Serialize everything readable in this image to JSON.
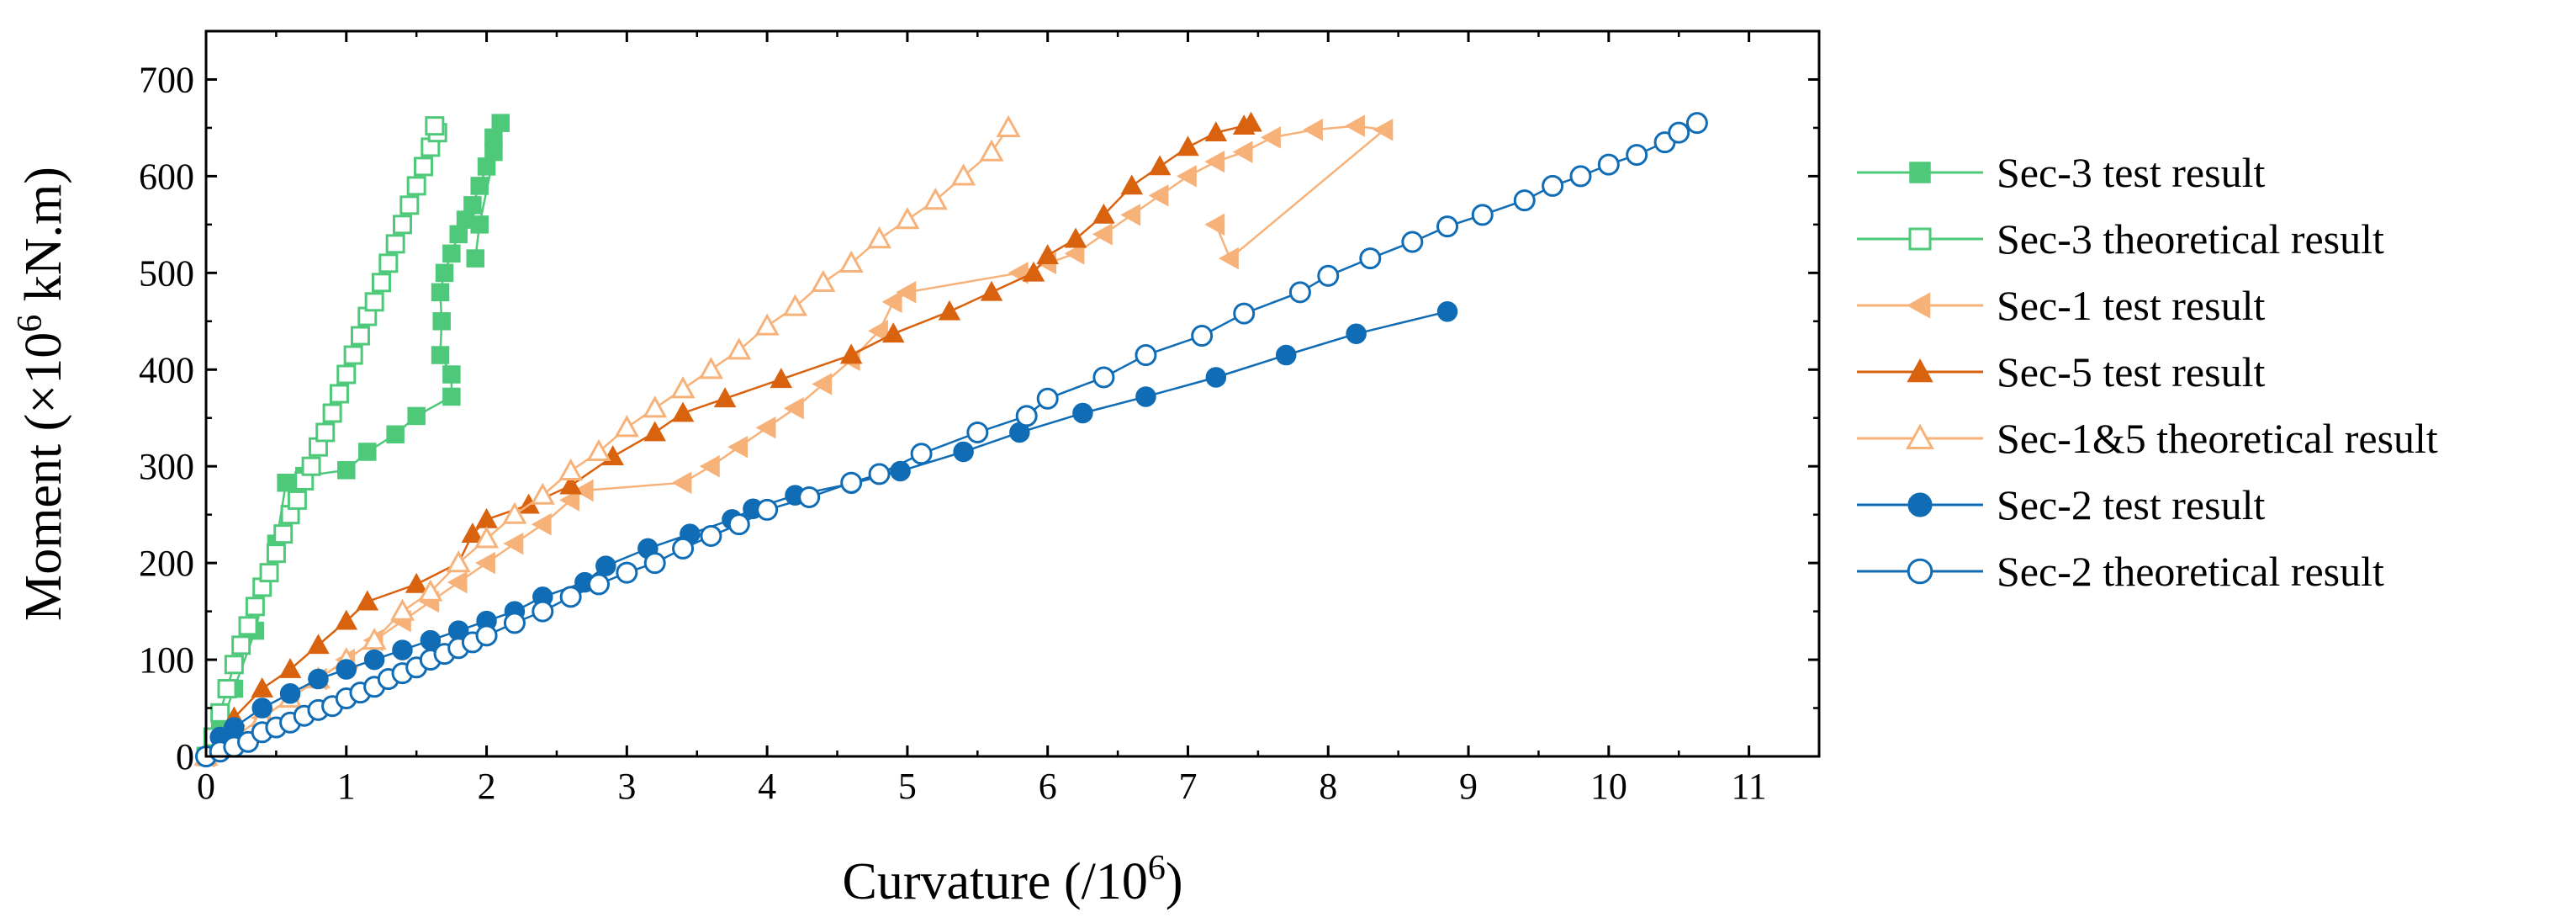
{
  "chart_data": {
    "type": "line",
    "title": "",
    "xlabel_main": "Curvature (/10",
    "xlabel_sup": "6",
    "xlabel_end": ")",
    "ylabel_main": "Moment (×10",
    "ylabel_sup": "6",
    "ylabel_end": " kN.m)",
    "xlim": [
      0,
      11.5
    ],
    "ylim": [
      0,
      750
    ],
    "xticks": [
      0,
      1,
      2,
      3,
      4,
      5,
      6,
      7,
      8,
      9,
      10,
      11
    ],
    "yticks": [
      0,
      100,
      200,
      300,
      400,
      500,
      600,
      700
    ],
    "grid": false,
    "legend_position": "right",
    "series": [
      {
        "name": "Sec-3 test result",
        "color": "#4ec97a",
        "marker": "square",
        "filled": true,
        "points": [
          [
            0,
            0
          ],
          [
            0.1,
            30
          ],
          [
            0.2,
            70
          ],
          [
            0.35,
            130
          ],
          [
            0.5,
            220
          ],
          [
            0.57,
            283
          ],
          [
            0.7,
            290
          ],
          [
            1.0,
            296
          ],
          [
            1.15,
            315
          ],
          [
            1.35,
            333
          ],
          [
            1.5,
            352
          ],
          [
            1.75,
            372
          ],
          [
            1.75,
            395
          ],
          [
            1.67,
            415
          ],
          [
            1.68,
            450
          ],
          [
            1.67,
            480
          ],
          [
            1.7,
            500
          ],
          [
            1.75,
            520
          ],
          [
            1.8,
            540
          ],
          [
            1.85,
            555
          ],
          [
            1.9,
            570
          ],
          [
            1.95,
            590
          ],
          [
            2.0,
            610
          ],
          [
            2.05,
            625
          ],
          [
            2.05,
            640
          ],
          [
            2.1,
            655
          ],
          [
            1.95,
            550
          ],
          [
            1.92,
            515
          ]
        ]
      },
      {
        "name": "Sec-3 theoretical result",
        "color": "#4ec97a",
        "marker": "square",
        "filled": false,
        "points": [
          [
            0,
            0
          ],
          [
            0.05,
            20
          ],
          [
            0.1,
            45
          ],
          [
            0.15,
            70
          ],
          [
            0.2,
            95
          ],
          [
            0.25,
            115
          ],
          [
            0.3,
            135
          ],
          [
            0.35,
            155
          ],
          [
            0.4,
            175
          ],
          [
            0.45,
            190
          ],
          [
            0.5,
            210
          ],
          [
            0.55,
            230
          ],
          [
            0.6,
            250
          ],
          [
            0.65,
            265
          ],
          [
            0.7,
            285
          ],
          [
            0.75,
            300
          ],
          [
            0.8,
            320
          ],
          [
            0.85,
            335
          ],
          [
            0.9,
            355
          ],
          [
            0.95,
            375
          ],
          [
            1.0,
            395
          ],
          [
            1.05,
            415
          ],
          [
            1.1,
            435
          ],
          [
            1.15,
            455
          ],
          [
            1.2,
            470
          ],
          [
            1.25,
            490
          ],
          [
            1.3,
            510
          ],
          [
            1.35,
            530
          ],
          [
            1.4,
            550
          ],
          [
            1.45,
            570
          ],
          [
            1.5,
            590
          ],
          [
            1.55,
            610
          ],
          [
            1.6,
            630
          ],
          [
            1.65,
            645
          ],
          [
            1.63,
            652
          ]
        ]
      },
      {
        "name": "Sec-1 test result",
        "color": "#f7b27a",
        "marker": "triangle-left",
        "filled": true,
        "points": [
          [
            0,
            0
          ],
          [
            0.2,
            20
          ],
          [
            0.4,
            40
          ],
          [
            0.6,
            60
          ],
          [
            0.8,
            80
          ],
          [
            1.0,
            100
          ],
          [
            1.2,
            120
          ],
          [
            1.4,
            140
          ],
          [
            1.6,
            160
          ],
          [
            1.8,
            180
          ],
          [
            2.0,
            200
          ],
          [
            2.2,
            220
          ],
          [
            2.4,
            240
          ],
          [
            2.6,
            265
          ],
          [
            2.7,
            275
          ],
          [
            3.4,
            283
          ],
          [
            3.6,
            300
          ],
          [
            3.8,
            320
          ],
          [
            4.0,
            340
          ],
          [
            4.2,
            360
          ],
          [
            4.4,
            385
          ],
          [
            4.6,
            410
          ],
          [
            4.8,
            440
          ],
          [
            4.9,
            470
          ],
          [
            5.0,
            480
          ],
          [
            5.8,
            500
          ],
          [
            6.0,
            510
          ],
          [
            6.2,
            520
          ],
          [
            6.4,
            540
          ],
          [
            6.6,
            560
          ],
          [
            6.8,
            580
          ],
          [
            7.0,
            600
          ],
          [
            7.2,
            615
          ],
          [
            7.4,
            625
          ],
          [
            7.6,
            640
          ],
          [
            7.9,
            648
          ],
          [
            8.2,
            652
          ],
          [
            8.4,
            648
          ],
          [
            7.3,
            515
          ],
          [
            7.2,
            550
          ]
        ]
      },
      {
        "name": "Sec-5 test result",
        "color": "#d9620f",
        "marker": "triangle-up",
        "filled": true,
        "points": [
          [
            0,
            0
          ],
          [
            0.2,
            40
          ],
          [
            0.4,
            70
          ],
          [
            0.6,
            90
          ],
          [
            0.8,
            115
          ],
          [
            1.0,
            140
          ],
          [
            1.15,
            160
          ],
          [
            1.5,
            178
          ],
          [
            1.8,
            200
          ],
          [
            1.9,
            230
          ],
          [
            2.0,
            245
          ],
          [
            2.3,
            260
          ],
          [
            2.6,
            280
          ],
          [
            2.9,
            310
          ],
          [
            3.2,
            335
          ],
          [
            3.4,
            355
          ],
          [
            3.7,
            370
          ],
          [
            4.1,
            390
          ],
          [
            4.6,
            415
          ],
          [
            4.9,
            437
          ],
          [
            5.3,
            460
          ],
          [
            5.6,
            480
          ],
          [
            5.9,
            500
          ],
          [
            6.0,
            518
          ],
          [
            6.2,
            535
          ],
          [
            6.4,
            560
          ],
          [
            6.6,
            590
          ],
          [
            6.8,
            610
          ],
          [
            7.0,
            630
          ],
          [
            7.2,
            645
          ],
          [
            7.4,
            652
          ],
          [
            7.45,
            655
          ]
        ]
      },
      {
        "name": "Sec-1&5 theoretical result",
        "color": "#f7b27a",
        "marker": "triangle-up",
        "filled": false,
        "points": [
          [
            0,
            0
          ],
          [
            0.2,
            20
          ],
          [
            0.4,
            40
          ],
          [
            0.6,
            60
          ],
          [
            0.8,
            80
          ],
          [
            1.0,
            100
          ],
          [
            1.2,
            120
          ],
          [
            1.4,
            150
          ],
          [
            1.6,
            170
          ],
          [
            1.8,
            200
          ],
          [
            2.0,
            225
          ],
          [
            2.2,
            250
          ],
          [
            2.4,
            270
          ],
          [
            2.6,
            295
          ],
          [
            2.8,
            315
          ],
          [
            3.0,
            340
          ],
          [
            3.2,
            360
          ],
          [
            3.4,
            380
          ],
          [
            3.6,
            400
          ],
          [
            3.8,
            420
          ],
          [
            4.0,
            445
          ],
          [
            4.2,
            465
          ],
          [
            4.4,
            490
          ],
          [
            4.6,
            510
          ],
          [
            4.8,
            535
          ],
          [
            5.0,
            555
          ],
          [
            5.2,
            575
          ],
          [
            5.4,
            600
          ],
          [
            5.6,
            625
          ],
          [
            5.72,
            650
          ]
        ]
      },
      {
        "name": "Sec-2 test result",
        "color": "#0f6cb5",
        "marker": "circle",
        "filled": true,
        "points": [
          [
            0,
            0
          ],
          [
            0.1,
            20
          ],
          [
            0.2,
            30
          ],
          [
            0.4,
            50
          ],
          [
            0.6,
            65
          ],
          [
            0.8,
            80
          ],
          [
            1.0,
            90
          ],
          [
            1.2,
            100
          ],
          [
            1.4,
            110
          ],
          [
            1.6,
            120
          ],
          [
            1.8,
            130
          ],
          [
            2.0,
            140
          ],
          [
            2.2,
            150
          ],
          [
            2.4,
            165
          ],
          [
            2.7,
            180
          ],
          [
            2.85,
            197
          ],
          [
            3.15,
            215
          ],
          [
            3.45,
            230
          ],
          [
            3.75,
            245
          ],
          [
            3.9,
            256
          ],
          [
            4.2,
            270
          ],
          [
            4.6,
            282
          ],
          [
            4.95,
            295
          ],
          [
            5.4,
            315
          ],
          [
            5.8,
            335
          ],
          [
            6.25,
            355
          ],
          [
            6.7,
            372
          ],
          [
            7.2,
            392
          ],
          [
            7.7,
            415
          ],
          [
            8.2,
            437
          ],
          [
            8.85,
            460
          ]
        ]
      },
      {
        "name": "Sec-2 theoretical result",
        "color": "#0f6cb5",
        "marker": "circle",
        "filled": false,
        "points": [
          [
            0,
            0
          ],
          [
            0.1,
            5
          ],
          [
            0.2,
            10
          ],
          [
            0.3,
            15
          ],
          [
            0.4,
            25
          ],
          [
            0.5,
            30
          ],
          [
            0.6,
            35
          ],
          [
            0.7,
            42
          ],
          [
            0.8,
            48
          ],
          [
            0.9,
            52
          ],
          [
            1.0,
            60
          ],
          [
            1.1,
            66
          ],
          [
            1.2,
            72
          ],
          [
            1.3,
            80
          ],
          [
            1.4,
            86
          ],
          [
            1.5,
            92
          ],
          [
            1.6,
            100
          ],
          [
            1.7,
            106
          ],
          [
            1.8,
            112
          ],
          [
            1.9,
            118
          ],
          [
            2.0,
            125
          ],
          [
            2.2,
            138
          ],
          [
            2.4,
            150
          ],
          [
            2.6,
            165
          ],
          [
            2.8,
            178
          ],
          [
            3.0,
            190
          ],
          [
            3.2,
            200
          ],
          [
            3.4,
            215
          ],
          [
            3.6,
            228
          ],
          [
            3.8,
            240
          ],
          [
            4.0,
            255
          ],
          [
            4.3,
            268
          ],
          [
            4.6,
            283
          ],
          [
            4.8,
            292
          ],
          [
            5.1,
            313
          ],
          [
            5.5,
            335
          ],
          [
            5.85,
            352
          ],
          [
            6.0,
            370
          ],
          [
            6.4,
            392
          ],
          [
            6.7,
            415
          ],
          [
            7.1,
            435
          ],
          [
            7.4,
            458
          ],
          [
            7.8,
            480
          ],
          [
            8.0,
            497
          ],
          [
            8.3,
            515
          ],
          [
            8.6,
            532
          ],
          [
            8.85,
            548
          ],
          [
            9.1,
            560
          ],
          [
            9.4,
            575
          ],
          [
            9.6,
            590
          ],
          [
            9.8,
            600
          ],
          [
            10.0,
            612
          ],
          [
            10.2,
            622
          ],
          [
            10.4,
            635
          ],
          [
            10.5,
            645
          ],
          [
            10.63,
            655
          ]
        ]
      }
    ]
  }
}
